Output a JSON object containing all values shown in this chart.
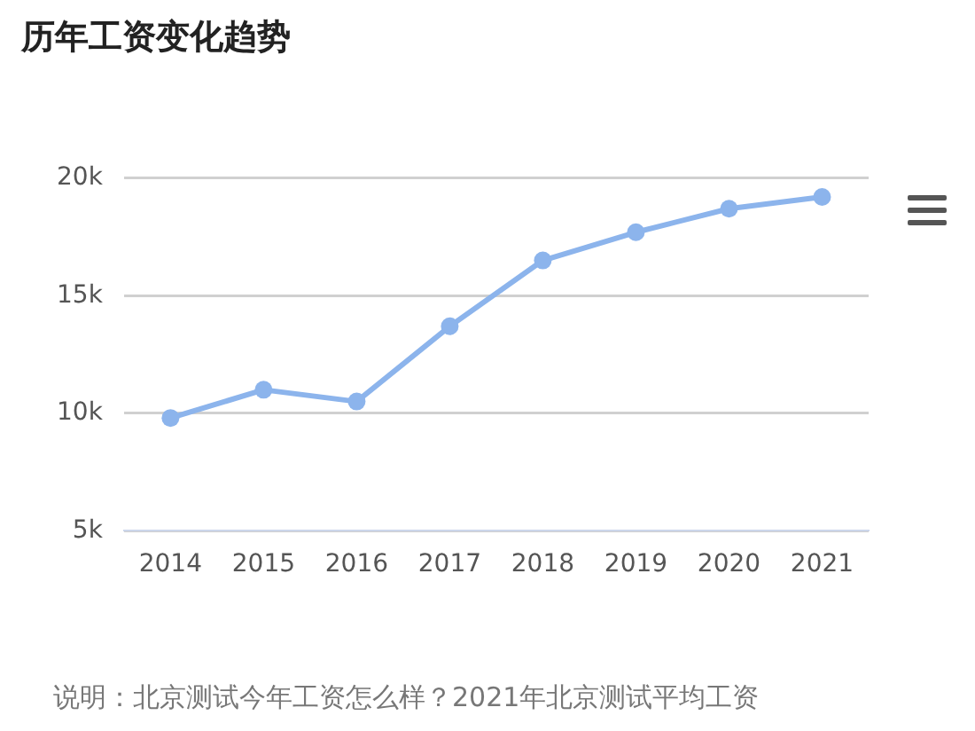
{
  "chart_data": {
    "type": "line",
    "title": "历年工资变化趋势",
    "categories": [
      "2014",
      "2015",
      "2016",
      "2017",
      "2018",
      "2019",
      "2020",
      "2021"
    ],
    "series": [
      {
        "color": "#8cb4ec",
        "values": [
          9800,
          11000,
          10500,
          13700,
          16500,
          17700,
          18700,
          19200
        ]
      }
    ],
    "ylim": [
      5000,
      20000
    ],
    "yticks": [
      {
        "value": 5000,
        "label": "5k"
      },
      {
        "value": 10000,
        "label": "10k"
      },
      {
        "value": 15000,
        "label": "15k"
      },
      {
        "value": 20000,
        "label": "20k"
      }
    ],
    "grid": "y",
    "marker": "circle",
    "line_style": "solid",
    "annotations": [
      "说明：北京测试今年工资怎么样？2021年北京测试平均工资"
    ]
  }
}
